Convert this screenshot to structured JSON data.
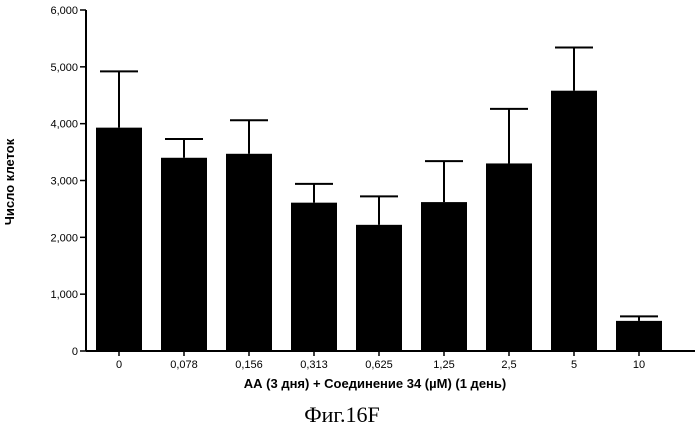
{
  "chart_data": {
    "type": "bar",
    "categories": [
      "0",
      "0,078",
      "0,156",
      "0,313",
      "0,625",
      "1,25",
      "2,5",
      "5",
      "10"
    ],
    "values": [
      3930,
      3400,
      3470,
      2610,
      2220,
      2620,
      3300,
      4580,
      530
    ],
    "errors": [
      990,
      330,
      590,
      330,
      500,
      720,
      960,
      760,
      80
    ],
    "ylim": [
      0,
      6000
    ],
    "yticks": [
      0,
      1000,
      2000,
      3000,
      4000,
      5000,
      6000
    ],
    "ytick_labels": [
      "0",
      "1,000",
      "2,000",
      "3,000",
      "4,000",
      "5,000",
      "6,000"
    ],
    "xlabel": "АА (3 дня)  + Соединение 34 (µM) (1 день)",
    "ylabel": "Число клеток",
    "bar_color": "#000000",
    "grid": false
  },
  "caption": "Фиг.16F"
}
